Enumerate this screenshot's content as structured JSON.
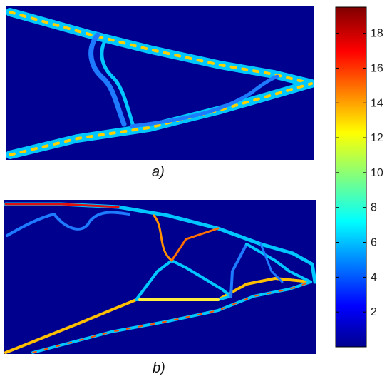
{
  "panels": [
    {
      "caption": "a)",
      "background_color": "#00008f"
    },
    {
      "caption": "b)",
      "background_color": "#00008f"
    }
  ],
  "colorbar": {
    "ticks": [
      "2",
      "4",
      "6",
      "8",
      "10",
      "12",
      "14",
      "16",
      "18"
    ],
    "tick_values": [
      2,
      4,
      6,
      8,
      10,
      12,
      14,
      16,
      18
    ],
    "range": [
      0,
      19.5
    ],
    "colormap": "jet"
  }
}
